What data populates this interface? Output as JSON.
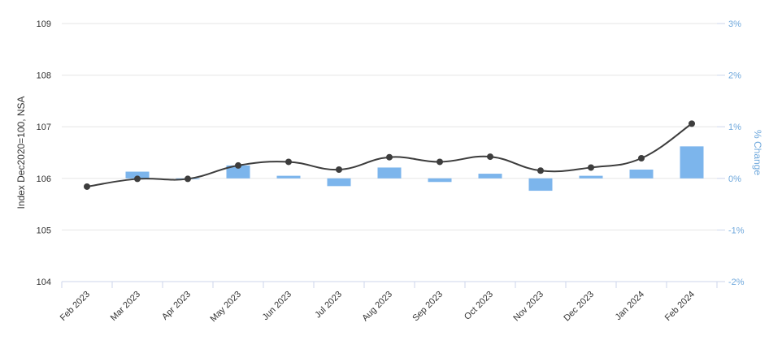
{
  "chart_data": {
    "type": "line+bar",
    "title": "",
    "categories": [
      "Feb 2023",
      "Mar 2023",
      "Apr 2023",
      "May 2023",
      "Jun 2023",
      "Jul 2023",
      "Aug 2023",
      "Sep 2023",
      "Oct 2023",
      "Nov 2023",
      "Dec 2023",
      "Jan 2024",
      "Feb 2024"
    ],
    "series": [
      {
        "type": "line",
        "axis": "left",
        "values": [
          105.84,
          105.99,
          105.99,
          106.25,
          106.32,
          106.17,
          106.41,
          106.32,
          106.42,
          106.15,
          106.21,
          106.39,
          107.06
        ],
        "color": "#3d3d3d"
      },
      {
        "type": "bar",
        "axis": "right",
        "values": [
          null,
          0.13,
          0.0,
          0.25,
          0.05,
          -0.15,
          0.21,
          -0.07,
          0.09,
          -0.24,
          0.05,
          0.17,
          0.62
        ],
        "color": "#7cb5ec"
      }
    ],
    "y_left": {
      "label": "Index Dec2020=100, NSA",
      "ticks": [
        "104",
        "105",
        "106",
        "107",
        "108",
        "109"
      ],
      "ylim": [
        104,
        109
      ]
    },
    "y_right": {
      "label": "% Change",
      "ticks": [
        "-2%",
        "-1%",
        "0%",
        "1%",
        "2%",
        "3%"
      ],
      "ylim": [
        -2,
        3
      ]
    },
    "grid": true,
    "legend": "none"
  }
}
